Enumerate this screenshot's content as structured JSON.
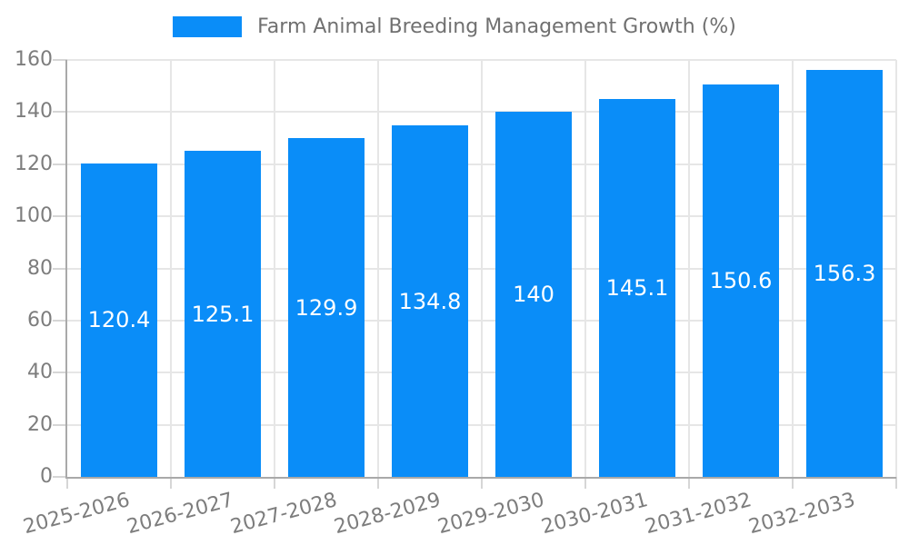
{
  "chart_data": {
    "type": "bar",
    "title": "Farm Animal Breeding Management Growth (%)",
    "categories": [
      "2025-2026",
      "2026-2027",
      "2027-2028",
      "2028-2029",
      "2029-2030",
      "2030-2031",
      "2031-2032",
      "2032-2033"
    ],
    "values": [
      120.4,
      125.1,
      129.9,
      134.8,
      140,
      145.1,
      150.6,
      156.3
    ],
    "values_display": [
      "120.4",
      "125.1",
      "129.9",
      "134.8",
      "140",
      "145.1",
      "150.6",
      "156.3"
    ],
    "xlabel": "",
    "ylabel": "",
    "ylim": [
      0,
      160
    ],
    "yticks": [
      0,
      20,
      40,
      60,
      80,
      100,
      120,
      140,
      160
    ],
    "grid": true,
    "legend_position": "top",
    "bar_color": "#0a8df8",
    "value_label_color": "#ffffff",
    "axis_color": "#a9a9a9",
    "grid_color": "#e6e6e6",
    "tick_label_color": "#7d7d7d",
    "legend_text_color": "#707070",
    "x_label_rotation_deg": -15
  },
  "legend": {
    "label": "Farm Animal Breeding Management Growth (%)"
  }
}
